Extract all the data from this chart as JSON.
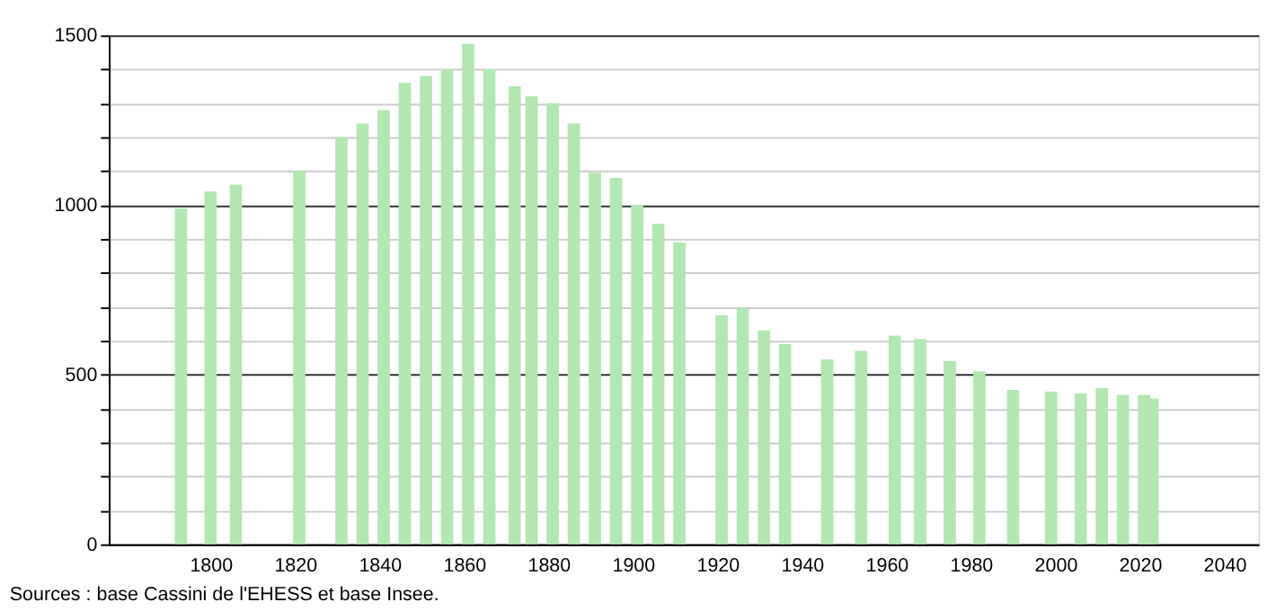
{
  "chart_data": {
    "type": "bar",
    "x": [
      1793,
      1800,
      1806,
      1821,
      1831,
      1836,
      1841,
      1846,
      1851,
      1856,
      1861,
      1866,
      1872,
      1876,
      1881,
      1886,
      1891,
      1896,
      1901,
      1906,
      1911,
      1921,
      1926,
      1931,
      1936,
      1946,
      1954,
      1962,
      1968,
      1975,
      1982,
      1990,
      1999,
      2006,
      2011,
      2016,
      2021,
      2023
    ],
    "series": [
      {
        "color": "#b3e6b3",
        "values": [
          990,
          1040,
          1060,
          1100,
          1200,
          1240,
          1280,
          1360,
          1380,
          1400,
          1475,
          1400,
          1350,
          1320,
          1300,
          1240,
          1095,
          1080,
          1000,
          945,
          890,
          675,
          695,
          630,
          590,
          545,
          570,
          615,
          605,
          540,
          510,
          455,
          450,
          445,
          460,
          440,
          440,
          430
        ]
      }
    ],
    "xlim": [
      1778,
      2046
    ],
    "xticks": [
      1800,
      1820,
      1840,
      1860,
      1880,
      1900,
      1920,
      1940,
      1960,
      1980,
      2000,
      2020,
      2040
    ],
    "ylim": [
      0,
      1500
    ],
    "yticks": [
      0,
      {
        "value": 100,
        "label": null
      },
      {
        "value": 200,
        "label": null
      },
      {
        "value": 300,
        "label": null
      },
      {
        "value": 400,
        "label": null
      },
      500,
      {
        "value": 600,
        "label": null
      },
      {
        "value": 700,
        "label": null
      },
      {
        "value": 800,
        "label": null
      },
      {
        "value": 900,
        "label": null
      },
      1000,
      {
        "value": 1100,
        "label": null
      },
      {
        "value": 1200,
        "label": null
      },
      {
        "value": 1300,
        "label": null
      },
      {
        "value": 1400,
        "label": null
      },
      1500
    ],
    "grid": "y",
    "annotations": [
      "Sources : base Cassini de l'EHESS et base Insee."
    ]
  }
}
